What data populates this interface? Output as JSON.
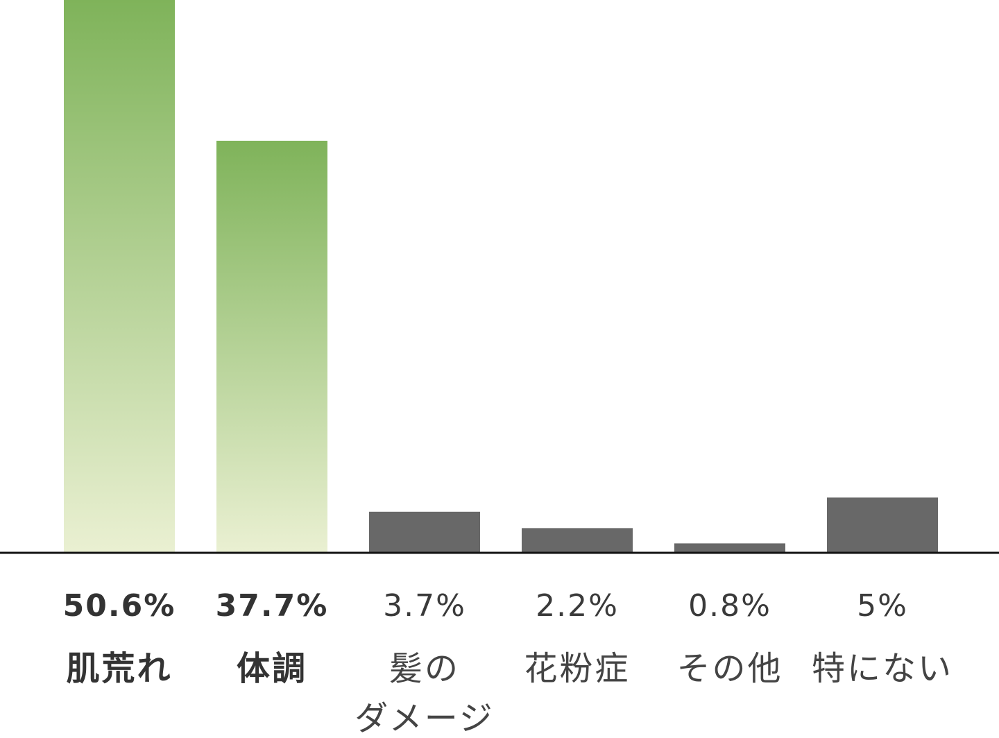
{
  "chart_data": {
    "type": "bar",
    "categories": [
      "肌荒れ",
      "体調",
      "髪のダメージ",
      "花粉症",
      "その他",
      "特にない"
    ],
    "category_lines": [
      [
        "肌荒れ"
      ],
      [
        "体調"
      ],
      [
        "髪の",
        "ダメージ"
      ],
      [
        "花粉症"
      ],
      [
        "その他"
      ],
      [
        "特にない"
      ]
    ],
    "values": [
      50.6,
      37.7,
      3.7,
      2.2,
      0.8,
      5
    ],
    "value_labels": [
      "50.6%",
      "37.7%",
      "3.7%",
      "2.2%",
      "0.8%",
      "5%"
    ],
    "highlight": [
      true,
      true,
      false,
      false,
      false,
      false
    ],
    "title": "",
    "xlabel": "",
    "ylabel": "",
    "ylim": [
      0,
      50.6
    ],
    "grid": false,
    "colors": {
      "highlight_top": "#7fb35a",
      "highlight_bottom": "#eaf0d2",
      "normal": "#686868",
      "axis": "#111111"
    }
  }
}
